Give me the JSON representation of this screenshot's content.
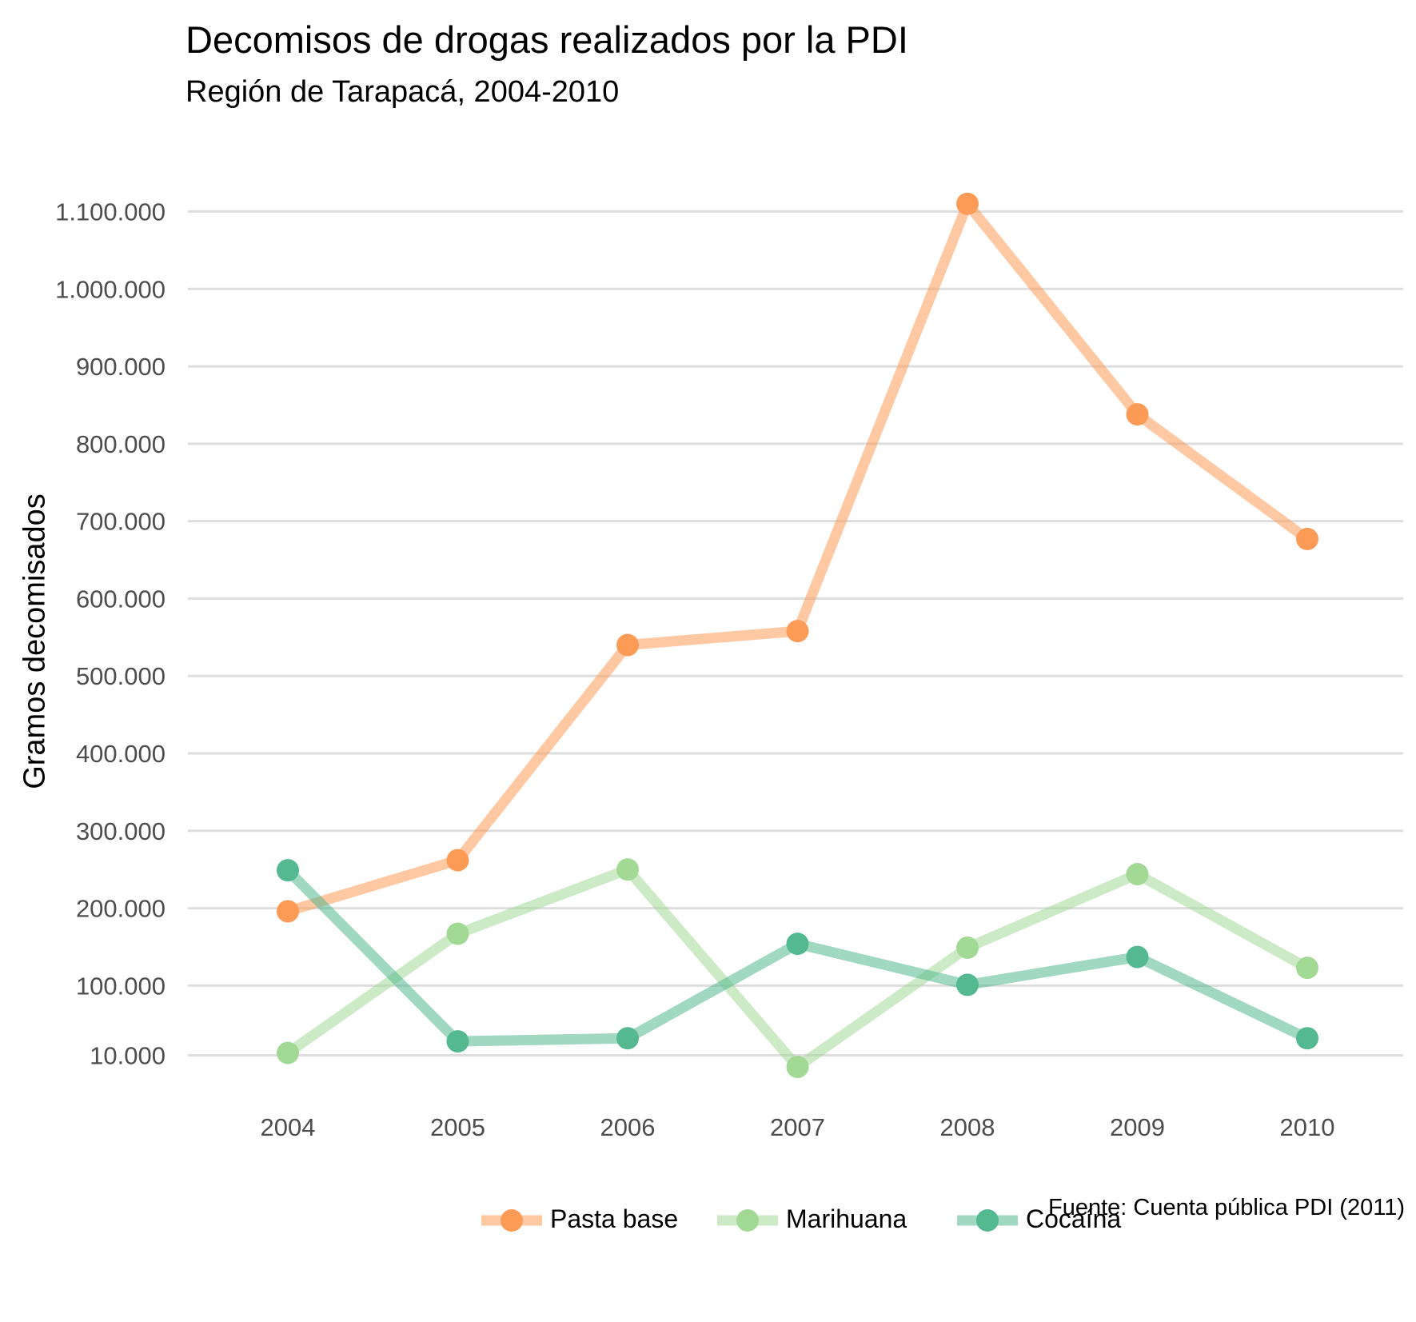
{
  "title": "Decomisos de drogas realizados por la PDI",
  "subtitle": "Región de Tarapacá, 2004-2010",
  "caption": "Fuente: Cuenta pública PDI (2011)",
  "chart_data": {
    "type": "line",
    "title": "Decomisos de drogas realizados por la PDI",
    "subtitle": "Región de Tarapacá, 2004-2010",
    "xlabel": "",
    "ylabel": "Gramos decomisados",
    "x": [
      "2004",
      "2005",
      "2006",
      "2007",
      "2008",
      "2009",
      "2010"
    ],
    "y_ticks": [
      10000,
      100000,
      200000,
      300000,
      400000,
      500000,
      600000,
      700000,
      800000,
      900000,
      1000000,
      1100000
    ],
    "y_tick_labels": [
      "10.000",
      "100.000",
      "200.000",
      "300.000",
      "400.000",
      "500.000",
      "600.000",
      "700.000",
      "800.000",
      "900.000",
      "1.000.000",
      "1.100.000"
    ],
    "ylim": [
      -25000,
      1140000
    ],
    "grid": "horizontal",
    "legend_position": "bottom",
    "series": [
      {
        "name": "Pasta base",
        "color": "#fc9b56",
        "values": [
          196000,
          262000,
          540000,
          558000,
          1110000,
          838000,
          677000
        ]
      },
      {
        "name": "Marihuana",
        "color": "#a1d995",
        "values": [
          13000,
          167000,
          250000,
          -5000,
          149000,
          244000,
          123000
        ]
      },
      {
        "name": "Cocaína",
        "color": "#54b890",
        "values": [
          249000,
          28000,
          32000,
          154000,
          101000,
          137000,
          32000
        ]
      }
    ]
  }
}
